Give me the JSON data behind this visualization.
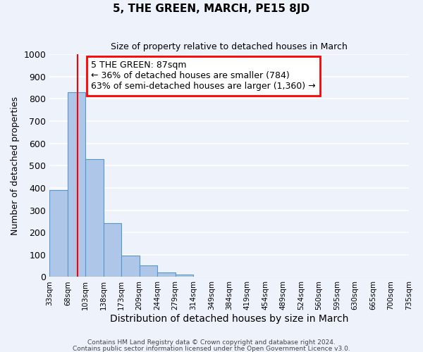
{
  "title": "5, THE GREEN, MARCH, PE15 8JD",
  "subtitle": "Size of property relative to detached houses in March",
  "xlabel": "Distribution of detached houses by size in March",
  "ylabel": "Number of detached properties",
  "footer_line1": "Contains HM Land Registry data © Crown copyright and database right 2024.",
  "footer_line2": "Contains public sector information licensed under the Open Government Licence v3.0.",
  "bin_labels": [
    "33sqm",
    "68sqm",
    "103sqm",
    "138sqm",
    "173sqm",
    "209sqm",
    "244sqm",
    "279sqm",
    "314sqm",
    "349sqm",
    "384sqm",
    "419sqm",
    "454sqm",
    "489sqm",
    "524sqm",
    "560sqm",
    "595sqm",
    "630sqm",
    "665sqm",
    "700sqm",
    "735sqm"
  ],
  "bar_values": [
    390,
    830,
    530,
    240,
    97,
    52,
    20,
    12,
    0,
    0,
    0,
    0,
    0,
    0,
    0,
    0,
    0,
    0,
    0,
    0
  ],
  "bar_color": "#aec6e8",
  "bar_edgecolor": "#5599cc",
  "ylim": [
    0,
    1000
  ],
  "yticks": [
    0,
    100,
    200,
    300,
    400,
    500,
    600,
    700,
    800,
    900,
    1000
  ],
  "red_line_x": 1.543,
  "annotation_text": "5 THE GREEN: 87sqm\n← 36% of detached houses are smaller (784)\n63% of semi-detached houses are larger (1,360) →",
  "bg_color": "#eef2fb",
  "plot_bg_color": "#eef2fb",
  "grid_color": "#ffffff"
}
